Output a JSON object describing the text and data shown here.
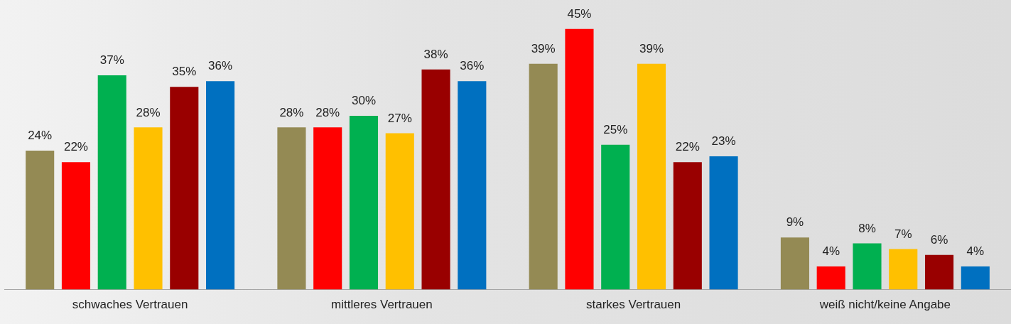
{
  "chart_data": {
    "type": "bar",
    "categories": [
      "schwaches Vertrauen",
      "mittleres Vertrauen",
      "starkes Vertrauen",
      "weiß nicht/keine Angabe"
    ],
    "grid": false,
    "legend": false,
    "tick_labels": "x",
    "series": [
      {
        "color": "#948a54",
        "values": [
          24,
          28,
          39,
          9
        ],
        "value_labels": [
          "24%",
          "28%",
          "39%",
          "9%"
        ]
      },
      {
        "color": "#ff0000",
        "values": [
          22,
          28,
          45,
          4
        ],
        "value_labels": [
          "22%",
          "28%",
          "45%",
          "4%"
        ]
      },
      {
        "color": "#00b050",
        "values": [
          37,
          30,
          25,
          8
        ],
        "value_labels": [
          "37%",
          "30%",
          "25%",
          "8%"
        ]
      },
      {
        "color": "#ffc000",
        "values": [
          28,
          27,
          39,
          7
        ],
        "value_labels": [
          "28%",
          "27%",
          "39%",
          "7%"
        ]
      },
      {
        "color": "#990000",
        "values": [
          35,
          38,
          22,
          6
        ],
        "value_labels": [
          "35%",
          "38%",
          "22%",
          "6%"
        ]
      },
      {
        "color": "#0070c0",
        "values": [
          36,
          36,
          23,
          4
        ],
        "value_labels": [
          "36%",
          "36%",
          "23%",
          "4%"
        ]
      }
    ]
  }
}
